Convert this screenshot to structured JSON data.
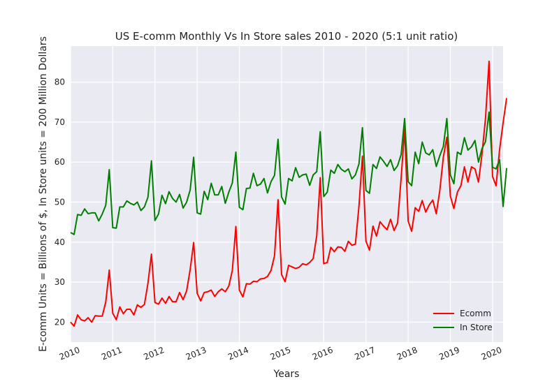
{
  "chart_data": {
    "type": "line",
    "title": "US E-comm Monthly Vs In Store sales 2010 - 2020 (5:1 unit ratio)",
    "xlabel": "Years",
    "ylabel": "E-comm Units = Billions of $, In Store units = 200 Million Dollars",
    "xlim": [
      "2010-01",
      "2020-04"
    ],
    "ylim": [
      15,
      89
    ],
    "x_ticks": [
      "2010",
      "2011",
      "2012",
      "2013",
      "2014",
      "2015",
      "2016",
      "2017",
      "2018",
      "2019",
      "2020"
    ],
    "y_ticks": [
      20,
      30,
      40,
      50,
      60,
      70,
      80
    ],
    "grid": true,
    "legend_position": "bottom-right",
    "x_start": "2010-01",
    "x_frequency": "monthly",
    "series": [
      {
        "name": "Ecomm",
        "color": "#ff0000",
        "values": [
          20.0,
          19.0,
          21.8,
          20.6,
          20.3,
          21.1,
          20.0,
          21.6,
          21.5,
          21.5,
          25.0,
          33.0,
          22.2,
          20.6,
          23.8,
          22.1,
          23.2,
          23.2,
          21.8,
          24.3,
          23.7,
          24.4,
          29.7,
          37.0,
          24.9,
          24.5,
          26.0,
          24.7,
          26.4,
          25.1,
          25.1,
          27.4,
          25.6,
          27.8,
          33.1,
          39.9,
          27.2,
          25.3,
          27.4,
          27.6,
          28.0,
          26.4,
          27.6,
          28.3,
          27.6,
          29.0,
          32.9,
          43.9,
          28.0,
          26.3,
          29.6,
          29.5,
          30.2,
          30.1,
          30.8,
          30.9,
          31.4,
          32.9,
          36.6,
          50.6,
          31.9,
          30.1,
          34.2,
          33.8,
          33.4,
          33.7,
          34.6,
          34.3,
          34.9,
          35.9,
          41.6,
          56.1,
          34.6,
          34.9,
          38.7,
          37.6,
          38.8,
          38.7,
          37.7,
          40.2,
          39.2,
          39.5,
          48.9,
          61.5,
          40.2,
          38.0,
          44.0,
          41.5,
          45.1,
          44.0,
          43.1,
          45.7,
          42.9,
          44.8,
          56.0,
          68.2,
          45.3,
          42.7,
          48.6,
          47.7,
          50.4,
          47.5,
          49.3,
          50.5,
          47.1,
          52.9,
          61.2,
          66.2,
          51.5,
          48.4,
          52.5,
          54.1,
          58.8,
          55.0,
          58.8,
          58.3,
          55.0,
          62.0,
          71.0,
          85.2,
          56.4,
          54.1,
          63.1,
          69.8,
          76.0
        ]
      },
      {
        "name": "In Store",
        "color": "#008000",
        "values": [
          42.4,
          41.9,
          46.9,
          46.7,
          48.3,
          47.1,
          47.3,
          47.3,
          45.3,
          47.0,
          49.2,
          58.1,
          43.6,
          43.5,
          48.8,
          48.8,
          50.3,
          49.7,
          49.3,
          50.0,
          47.9,
          48.8,
          51.2,
          60.3,
          45.4,
          47.0,
          51.7,
          49.6,
          52.6,
          50.9,
          50.0,
          51.9,
          48.5,
          50.0,
          53.0,
          61.2,
          47.3,
          47.0,
          52.7,
          50.6,
          54.7,
          51.8,
          51.8,
          53.9,
          49.7,
          52.5,
          54.8,
          62.5,
          48.7,
          48.1,
          53.4,
          53.5,
          57.2,
          54.1,
          54.5,
          55.9,
          52.3,
          55.1,
          56.7,
          65.7,
          51.3,
          49.5,
          55.9,
          55.3,
          58.6,
          56.2,
          56.8,
          57.0,
          54.2,
          56.8,
          57.6,
          67.6,
          51.4,
          52.5,
          58.0,
          57.2,
          59.4,
          58.2,
          57.6,
          58.3,
          55.8,
          56.8,
          59.5,
          68.6,
          52.9,
          52.2,
          59.4,
          58.4,
          61.3,
          60.2,
          58.9,
          60.6,
          57.9,
          59.1,
          61.9,
          70.9,
          55.1,
          54.1,
          62.5,
          59.6,
          65.0,
          62.3,
          61.8,
          63.1,
          58.9,
          61.6,
          63.9,
          70.9,
          56.8,
          54.6,
          62.5,
          61.9,
          66.1,
          63.0,
          63.8,
          65.4,
          60.0,
          63.4,
          65.1,
          72.5,
          58.7,
          58.3,
          60.6,
          48.9,
          58.5
        ]
      }
    ]
  }
}
